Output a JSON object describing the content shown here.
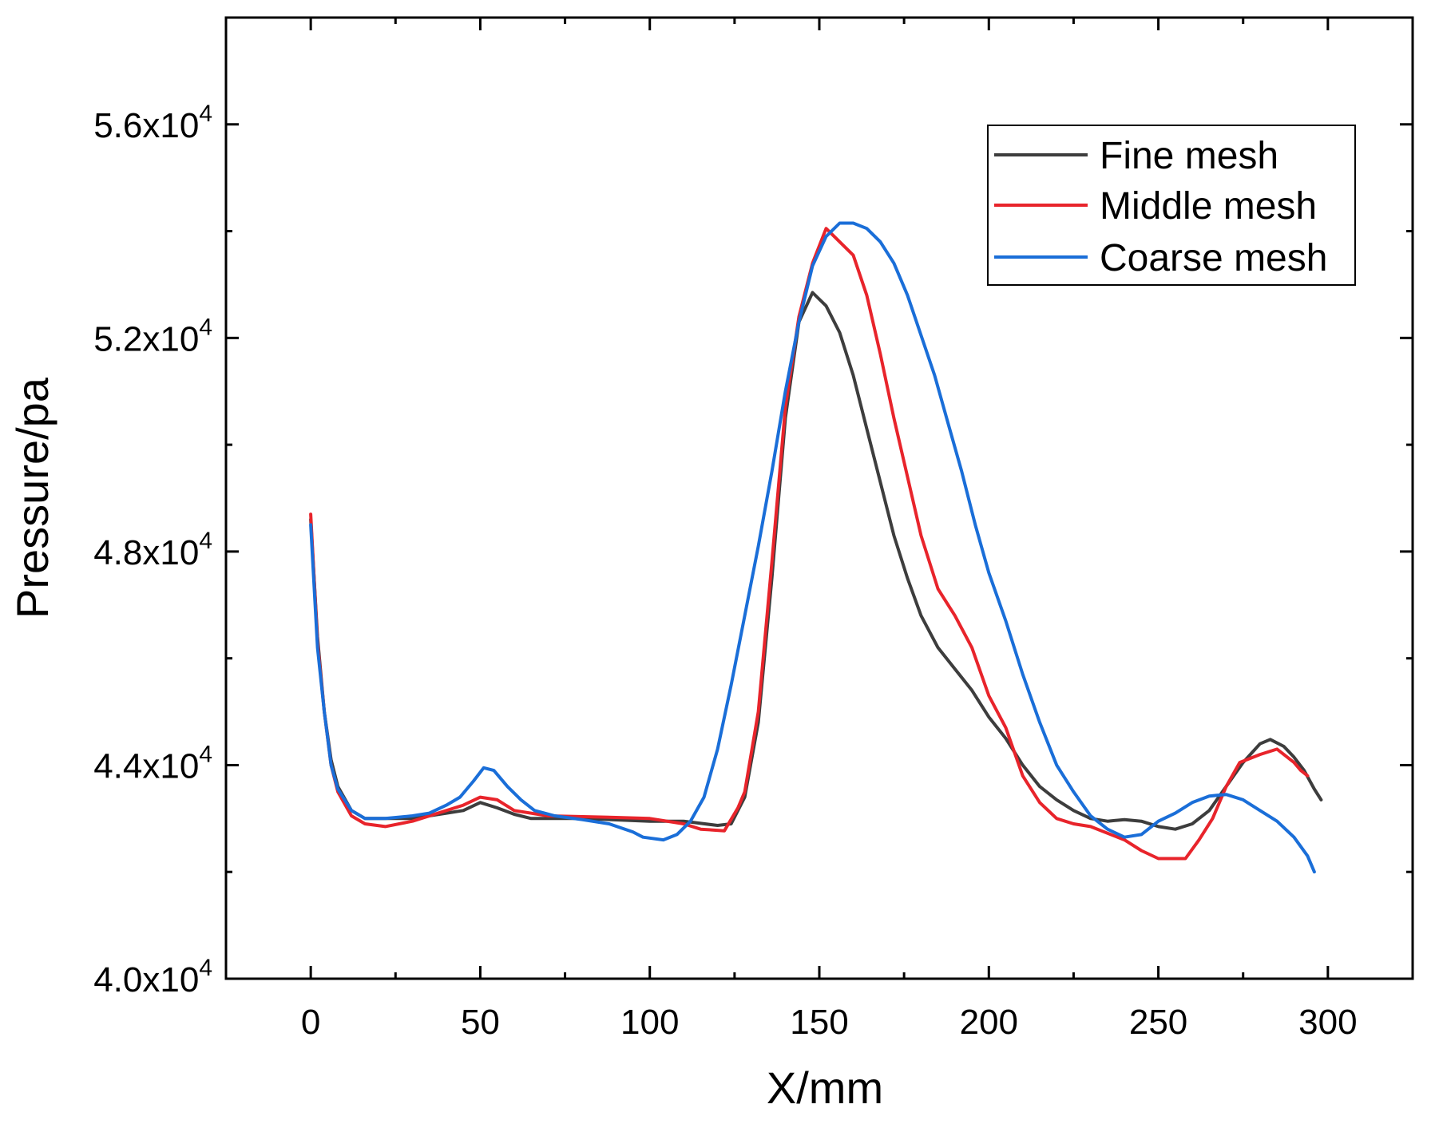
{
  "chart_data": {
    "type": "line",
    "title": "",
    "xlabel": "X/mm",
    "ylabel": "Pressure/pa",
    "xlim": [
      -25,
      325
    ],
    "ylim": [
      40000,
      58000
    ],
    "x_ticks": [
      0,
      50,
      100,
      150,
      200,
      250,
      300
    ],
    "x_tick_labels": [
      "0",
      "50",
      "100",
      "150",
      "200",
      "250",
      "300"
    ],
    "x_minor_ticks": [
      25,
      75,
      125,
      175,
      225,
      275
    ],
    "y_ticks": [
      40000,
      44000,
      48000,
      52000,
      56000
    ],
    "y_tick_mantissas": [
      "4.0x10",
      "4.4x10",
      "4.8x10",
      "5.2x10",
      "5.6x10"
    ],
    "y_tick_exponent": "4",
    "y_minor_ticks": [
      42000,
      46000,
      50000,
      54000
    ],
    "legend_position": "top-right",
    "grid": false,
    "series": [
      {
        "name": "Fine mesh",
        "color": "#3d3d3d",
        "points": [
          [
            0,
            48600
          ],
          [
            2,
            46400
          ],
          [
            4,
            45000
          ],
          [
            6,
            44100
          ],
          [
            8,
            43600
          ],
          [
            12,
            43150
          ],
          [
            16,
            43000
          ],
          [
            20,
            43000
          ],
          [
            30,
            43000
          ],
          [
            40,
            43100
          ],
          [
            45,
            43150
          ],
          [
            50,
            43300
          ],
          [
            55,
            43200
          ],
          [
            60,
            43080
          ],
          [
            65,
            43000
          ],
          [
            80,
            43000
          ],
          [
            100,
            42950
          ],
          [
            110,
            42950
          ],
          [
            120,
            42870
          ],
          [
            124,
            42900
          ],
          [
            128,
            43400
          ],
          [
            132,
            44800
          ],
          [
            136,
            47500
          ],
          [
            140,
            50500
          ],
          [
            144,
            52300
          ],
          [
            148,
            52850
          ],
          [
            152,
            52600
          ],
          [
            156,
            52100
          ],
          [
            160,
            51300
          ],
          [
            164,
            50300
          ],
          [
            168,
            49300
          ],
          [
            172,
            48300
          ],
          [
            176,
            47500
          ],
          [
            180,
            46800
          ],
          [
            185,
            46200
          ],
          [
            190,
            45800
          ],
          [
            195,
            45400
          ],
          [
            200,
            44900
          ],
          [
            205,
            44500
          ],
          [
            210,
            44000
          ],
          [
            215,
            43600
          ],
          [
            220,
            43350
          ],
          [
            225,
            43150
          ],
          [
            230,
            43000
          ],
          [
            235,
            42950
          ],
          [
            240,
            42980
          ],
          [
            245,
            42950
          ],
          [
            250,
            42850
          ],
          [
            255,
            42800
          ],
          [
            260,
            42900
          ],
          [
            265,
            43150
          ],
          [
            270,
            43600
          ],
          [
            275,
            44050
          ],
          [
            280,
            44400
          ],
          [
            283,
            44480
          ],
          [
            287,
            44350
          ],
          [
            290,
            44150
          ],
          [
            293,
            43900
          ],
          [
            296,
            43550
          ],
          [
            298,
            43350
          ]
        ]
      },
      {
        "name": "Middle mesh",
        "color": "#e8242b",
        "points": [
          [
            0,
            48700
          ],
          [
            2,
            46300
          ],
          [
            4,
            45000
          ],
          [
            6,
            44000
          ],
          [
            8,
            43500
          ],
          [
            12,
            43050
          ],
          [
            16,
            42900
          ],
          [
            22,
            42850
          ],
          [
            30,
            42950
          ],
          [
            40,
            43150
          ],
          [
            45,
            43250
          ],
          [
            50,
            43400
          ],
          [
            55,
            43350
          ],
          [
            60,
            43150
          ],
          [
            70,
            43050
          ],
          [
            90,
            43020
          ],
          [
            100,
            43000
          ],
          [
            110,
            42900
          ],
          [
            115,
            42800
          ],
          [
            122,
            42770
          ],
          [
            126,
            43200
          ],
          [
            128,
            43500
          ],
          [
            132,
            45000
          ],
          [
            136,
            47800
          ],
          [
            140,
            50700
          ],
          [
            144,
            52400
          ],
          [
            148,
            53400
          ],
          [
            152,
            54050
          ],
          [
            156,
            53800
          ],
          [
            160,
            53550
          ],
          [
            164,
            52800
          ],
          [
            168,
            51700
          ],
          [
            172,
            50500
          ],
          [
            176,
            49400
          ],
          [
            180,
            48300
          ],
          [
            185,
            47300
          ],
          [
            190,
            46800
          ],
          [
            195,
            46200
          ],
          [
            200,
            45300
          ],
          [
            205,
            44700
          ],
          [
            210,
            43800
          ],
          [
            215,
            43300
          ],
          [
            220,
            43000
          ],
          [
            225,
            42900
          ],
          [
            230,
            42850
          ],
          [
            240,
            42600
          ],
          [
            245,
            42400
          ],
          [
            250,
            42250
          ],
          [
            258,
            42250
          ],
          [
            262,
            42600
          ],
          [
            266,
            43000
          ],
          [
            270,
            43600
          ],
          [
            274,
            44050
          ],
          [
            280,
            44200
          ],
          [
            285,
            44300
          ],
          [
            290,
            44050
          ],
          [
            292,
            43900
          ],
          [
            294,
            43800
          ]
        ]
      },
      {
        "name": "Coarse mesh",
        "color": "#1a6ed8",
        "points": [
          [
            0,
            48500
          ],
          [
            2,
            46200
          ],
          [
            4,
            45000
          ],
          [
            6,
            44000
          ],
          [
            8,
            43550
          ],
          [
            12,
            43150
          ],
          [
            16,
            43000
          ],
          [
            22,
            43000
          ],
          [
            30,
            43050
          ],
          [
            35,
            43100
          ],
          [
            40,
            43250
          ],
          [
            44,
            43400
          ],
          [
            48,
            43700
          ],
          [
            51,
            43950
          ],
          [
            54,
            43900
          ],
          [
            58,
            43600
          ],
          [
            62,
            43350
          ],
          [
            66,
            43150
          ],
          [
            72,
            43050
          ],
          [
            80,
            42980
          ],
          [
            88,
            42900
          ],
          [
            95,
            42750
          ],
          [
            98,
            42650
          ],
          [
            104,
            42600
          ],
          [
            108,
            42700
          ],
          [
            112,
            42950
          ],
          [
            116,
            43400
          ],
          [
            120,
            44300
          ],
          [
            124,
            45500
          ],
          [
            128,
            46800
          ],
          [
            132,
            48100
          ],
          [
            136,
            49500
          ],
          [
            140,
            51000
          ],
          [
            144,
            52300
          ],
          [
            148,
            53350
          ],
          [
            152,
            53900
          ],
          [
            156,
            54150
          ],
          [
            160,
            54150
          ],
          [
            164,
            54050
          ],
          [
            168,
            53800
          ],
          [
            172,
            53400
          ],
          [
            176,
            52800
          ],
          [
            180,
            52050
          ],
          [
            184,
            51300
          ],
          [
            188,
            50400
          ],
          [
            192,
            49500
          ],
          [
            196,
            48500
          ],
          [
            200,
            47600
          ],
          [
            205,
            46700
          ],
          [
            210,
            45700
          ],
          [
            215,
            44800
          ],
          [
            220,
            44000
          ],
          [
            225,
            43500
          ],
          [
            230,
            43050
          ],
          [
            235,
            42800
          ],
          [
            240,
            42650
          ],
          [
            245,
            42700
          ],
          [
            250,
            42950
          ],
          [
            255,
            43100
          ],
          [
            260,
            43300
          ],
          [
            265,
            43420
          ],
          [
            270,
            43450
          ],
          [
            275,
            43350
          ],
          [
            280,
            43150
          ],
          [
            285,
            42950
          ],
          [
            290,
            42650
          ],
          [
            294,
            42300
          ],
          [
            296,
            42000
          ]
        ]
      }
    ]
  }
}
